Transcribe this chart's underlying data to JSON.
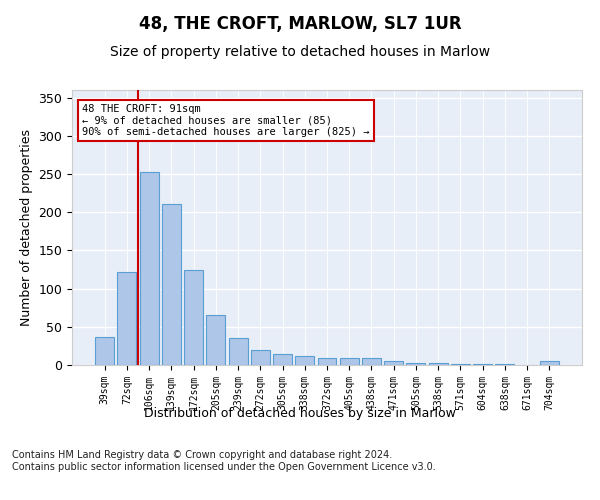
{
  "title1": "48, THE CROFT, MARLOW, SL7 1UR",
  "title2": "Size of property relative to detached houses in Marlow",
  "xlabel": "Distribution of detached houses by size in Marlow",
  "ylabel": "Number of detached properties",
  "categories": [
    "39sqm",
    "72sqm",
    "106sqm",
    "139sqm",
    "172sqm",
    "205sqm",
    "239sqm",
    "272sqm",
    "305sqm",
    "338sqm",
    "372sqm",
    "405sqm",
    "438sqm",
    "471sqm",
    "505sqm",
    "538sqm",
    "571sqm",
    "604sqm",
    "638sqm",
    "671sqm",
    "704sqm"
  ],
  "values": [
    37,
    122,
    252,
    211,
    124,
    66,
    35,
    20,
    15,
    12,
    9,
    9,
    9,
    5,
    3,
    2,
    1,
    1,
    1,
    0,
    5
  ],
  "bar_color": "#aec6e8",
  "bar_edge_color": "#5a9fd4",
  "vline_x": 1.5,
  "vline_color": "#cc0000",
  "annotation_lines": [
    "48 THE CROFT: 91sqm",
    "← 9% of detached houses are smaller (85)",
    "90% of semi-detached houses are larger (825) →"
  ],
  "annotation_box_color": "#ffffff",
  "annotation_border_color": "#cc0000",
  "ylim": [
    0,
    360
  ],
  "yticks": [
    0,
    50,
    100,
    150,
    200,
    250,
    300,
    350
  ],
  "bg_color": "#e8eef8",
  "footer": "Contains HM Land Registry data © Crown copyright and database right 2024.\nContains public sector information licensed under the Open Government Licence v3.0.",
  "title1_fontsize": 12,
  "title2_fontsize": 10,
  "xlabel_fontsize": 9,
  "ylabel_fontsize": 9,
  "footer_fontsize": 7
}
